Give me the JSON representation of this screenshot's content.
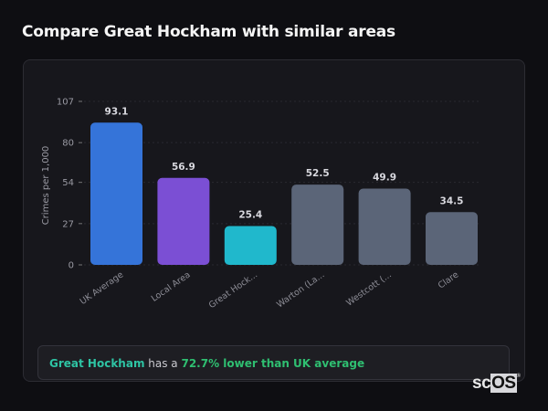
{
  "header": {
    "title": "Compare Great Hockham with similar areas"
  },
  "chart_data": {
    "type": "bar",
    "title": "",
    "xlabel": "",
    "ylabel": "Crimes per 1,000",
    "ylim": [
      0,
      107
    ],
    "yticks": [
      0,
      27,
      54,
      80,
      107
    ],
    "grid": true,
    "categories": [
      "UK Average",
      "Local Area",
      "Great Hock...",
      "Warton (La...",
      "Westcott (...",
      "Clare"
    ],
    "values": [
      93.1,
      56.9,
      25.4,
      52.5,
      49.9,
      34.5
    ],
    "value_labels": [
      "93.1",
      "56.9",
      "25.4",
      "52.5",
      "49.9",
      "34.5"
    ],
    "colors": [
      "#3574d9",
      "#7b4fd4",
      "#20b8cc",
      "#5b6578",
      "#5b6578",
      "#5b6578"
    ]
  },
  "summary": {
    "area": "Great Hockham",
    "middle": " has a ",
    "comparison": "72.7% lower than UK average"
  },
  "logo": {
    "text_a": "sc",
    "text_b": "OS",
    "mark": "®"
  }
}
